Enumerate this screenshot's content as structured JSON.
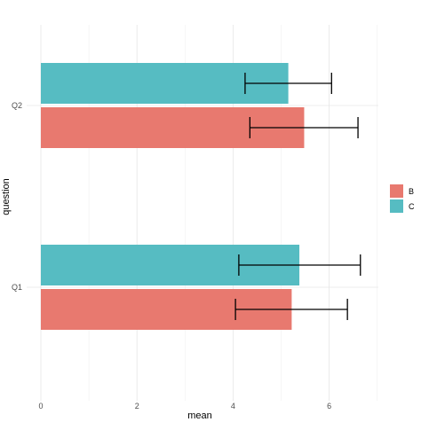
{
  "chart_data": {
    "type": "bar",
    "orientation": "horizontal",
    "xlabel": "mean",
    "ylabel": "question",
    "xlim": [
      0,
      7
    ],
    "x_ticks": [
      0,
      2,
      4,
      6
    ],
    "categories": [
      "Q1",
      "Q2"
    ],
    "series": [
      {
        "name": "B",
        "color": "#E8796F",
        "values": [
          5.22,
          5.48
        ],
        "error_low": [
          4.05,
          4.35
        ],
        "error_high": [
          6.38,
          6.6
        ]
      },
      {
        "name": "C",
        "color": "#56BCC2",
        "values": [
          5.38,
          5.15
        ],
        "error_low": [
          4.12,
          4.25
        ],
        "error_high": [
          6.65,
          6.05
        ]
      }
    ],
    "grid": true,
    "legend_position": "right"
  }
}
